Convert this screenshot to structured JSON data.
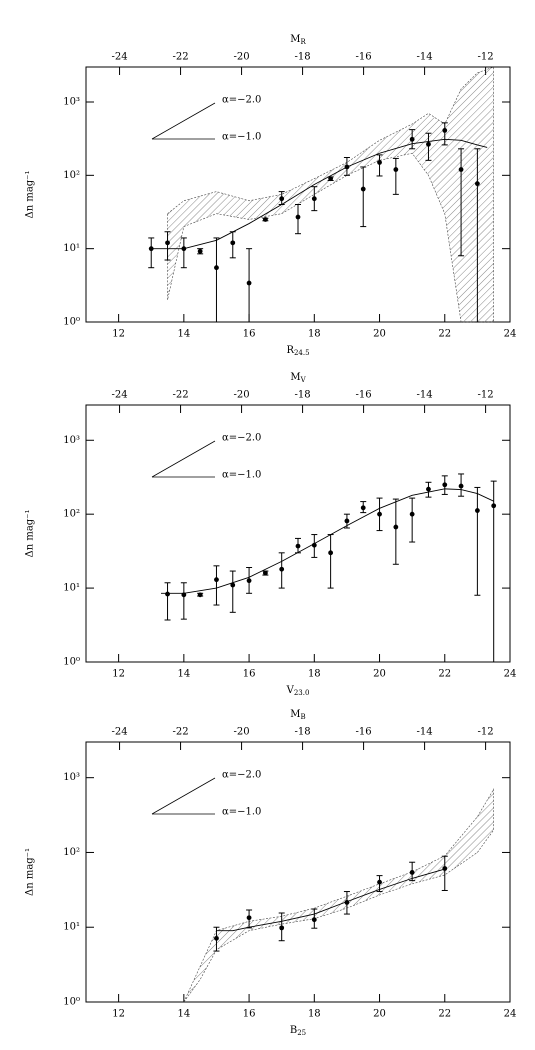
{
  "chart_data": [
    {
      "type": "scatter",
      "x_label": {
        "text": "R",
        "sub": "24.5"
      },
      "x2_label": {
        "text": "M",
        "sub": "R"
      },
      "y_label": "Δn mag⁻¹",
      "annotations": [
        "α=−2.0",
        "α=−1.0"
      ],
      "xlim": [
        11,
        24
      ],
      "xticks": [
        12,
        14,
        16,
        18,
        20,
        22,
        24
      ],
      "x2lim": [
        -25.1,
        -11.2
      ],
      "x2ticks": [
        -24,
        -22,
        -20,
        -18,
        -16,
        -14,
        -12
      ],
      "ylim": [
        1,
        3000
      ],
      "log_y": true,
      "yticks": [
        {
          "value": 1,
          "label": "10⁰"
        },
        {
          "value": 10,
          "label": "10¹"
        },
        {
          "value": 100,
          "label": "10²"
        },
        {
          "value": 1000,
          "label": "10³"
        }
      ],
      "points": {
        "x": [
          13,
          13.5,
          14,
          14.5,
          15,
          15.5,
          16,
          16.5,
          17,
          17.5,
          18,
          18.5,
          19,
          19.5,
          20,
          20.5,
          21,
          21.5,
          22,
          22.5,
          23
        ],
        "values": [
          10,
          12,
          10,
          9.2,
          5.5,
          12,
          3.4,
          25,
          48,
          27,
          48,
          90,
          130,
          65,
          150,
          120,
          310,
          265,
          410,
          120,
          77
        ],
        "lower": [
          5.5,
          7,
          5.5,
          8.5,
          1,
          7.5,
          1,
          24,
          40,
          16,
          33,
          85,
          100,
          20,
          98,
          55,
          230,
          160,
          260,
          8,
          1
        ],
        "upper": [
          14,
          17,
          14,
          10,
          14,
          17,
          10,
          26,
          60,
          40,
          70,
          95,
          175,
          130,
          190,
          170,
          420,
          375,
          520,
          230,
          230
        ]
      },
      "fit": {
        "x": [
          13,
          14,
          15,
          16,
          17,
          18,
          19,
          20,
          21,
          22,
          22.5,
          23,
          23.3
        ],
        "values": [
          10,
          10,
          13,
          22,
          40,
          75,
          130,
          200,
          270,
          310,
          300,
          260,
          240
        ]
      },
      "band": {
        "x": [
          13.5,
          14,
          15,
          16,
          17,
          18,
          19,
          20,
          21,
          21.5,
          22,
          22.5,
          23,
          23.5
        ],
        "lower": [
          2,
          20,
          30,
          25,
          30,
          55,
          100,
          160,
          200,
          100,
          30,
          1,
          1,
          1
        ],
        "upper": [
          30,
          45,
          60,
          45,
          55,
          90,
          150,
          300,
          500,
          700,
          500,
          1500,
          2500,
          3000
        ]
      }
    },
    {
      "type": "scatter",
      "x_label": {
        "text": "V",
        "sub": "23.0"
      },
      "x2_label": {
        "text": "M",
        "sub": "V"
      },
      "y_label": "Δn mag⁻¹",
      "annotations": [
        "α=−2.0",
        "α=−1.0"
      ],
      "xlim": [
        11,
        24
      ],
      "xticks": [
        12,
        14,
        16,
        18,
        20,
        22,
        24
      ],
      "x2lim": [
        -25.1,
        -11.2
      ],
      "x2ticks": [
        -24,
        -22,
        -20,
        -18,
        -16,
        -14,
        -12
      ],
      "ylim": [
        1,
        3000
      ],
      "log_y": true,
      "yticks": [
        {
          "value": 1,
          "label": "10⁰"
        },
        {
          "value": 10,
          "label": "10¹"
        },
        {
          "value": 100,
          "label": "10²"
        },
        {
          "value": 1000,
          "label": "10³"
        }
      ],
      "points": {
        "x": [
          13.5,
          14,
          14.5,
          15,
          15.5,
          16,
          16.5,
          17,
          17.5,
          18,
          18.5,
          19,
          19.5,
          20,
          20.5,
          21,
          21.5,
          22,
          22.5,
          23,
          23.5
        ],
        "values": [
          8.3,
          8.1,
          8.1,
          13,
          11,
          12.6,
          16,
          18,
          37,
          38,
          30,
          81,
          122,
          100,
          67,
          100,
          218,
          250,
          240,
          112,
          130
        ],
        "lower": [
          3.7,
          3.8,
          7.8,
          5.9,
          4.7,
          8.5,
          15,
          10,
          30,
          26,
          10,
          65,
          105,
          60,
          21,
          42,
          170,
          185,
          175,
          8,
          1
        ],
        "upper": [
          11.8,
          11.8,
          8.5,
          20,
          17,
          19,
          17,
          30,
          47,
          53,
          53,
          100,
          148,
          165,
          160,
          165,
          270,
          330,
          350,
          230,
          280
        ]
      },
      "fit": {
        "x": [
          13.3,
          14,
          15,
          16,
          17,
          18,
          19,
          20,
          21,
          22,
          22.5,
          23,
          23.5
        ],
        "values": [
          8.5,
          8.5,
          10,
          14,
          23,
          40,
          70,
          120,
          180,
          220,
          215,
          190,
          150
        ]
      }
    },
    {
      "type": "scatter",
      "x_label": {
        "text": "B",
        "sub": "25"
      },
      "x2_label": {
        "text": "M",
        "sub": "B"
      },
      "y_label": "Δn mag⁻¹",
      "annotations": [
        "α=−2.0",
        "α=−1.0"
      ],
      "xlim": [
        11,
        24
      ],
      "xticks": [
        12,
        14,
        16,
        18,
        20,
        22,
        24
      ],
      "x2lim": [
        -25.1,
        -11.2
      ],
      "x2ticks": [
        -24,
        -22,
        -20,
        -18,
        -16,
        -14,
        -12
      ],
      "ylim": [
        1,
        3000
      ],
      "log_y": true,
      "yticks": [
        {
          "value": 1,
          "label": "10⁰"
        },
        {
          "value": 10,
          "label": "10¹"
        },
        {
          "value": 100,
          "label": "10²"
        },
        {
          "value": 1000,
          "label": "10³"
        }
      ],
      "points": {
        "x": [
          15,
          16,
          17,
          18,
          19,
          20,
          21,
          22
        ],
        "values": [
          7.1,
          13.4,
          9.8,
          12.6,
          21.5,
          40,
          54,
          61
        ],
        "lower": [
          4.8,
          9.8,
          6.6,
          9.7,
          15,
          30,
          42,
          31
        ],
        "upper": [
          10,
          17,
          15.5,
          17.5,
          30,
          49,
          74,
          89
        ]
      },
      "fit": {
        "x": [
          15,
          15.5,
          16,
          17,
          18,
          19,
          20,
          21,
          22
        ],
        "values": [
          9,
          9,
          10,
          12,
          15,
          22,
          32,
          45,
          60
        ]
      },
      "band": {
        "x": [
          14,
          14.5,
          15,
          16,
          17,
          18,
          19,
          20,
          21,
          22,
          23,
          23.5
        ],
        "lower": [
          1,
          2,
          5,
          9,
          11,
          13,
          18,
          27,
          38,
          50,
          100,
          200
        ],
        "upper": [
          1,
          3,
          9,
          12,
          14,
          18,
          26,
          38,
          55,
          90,
          300,
          700
        ]
      }
    }
  ]
}
